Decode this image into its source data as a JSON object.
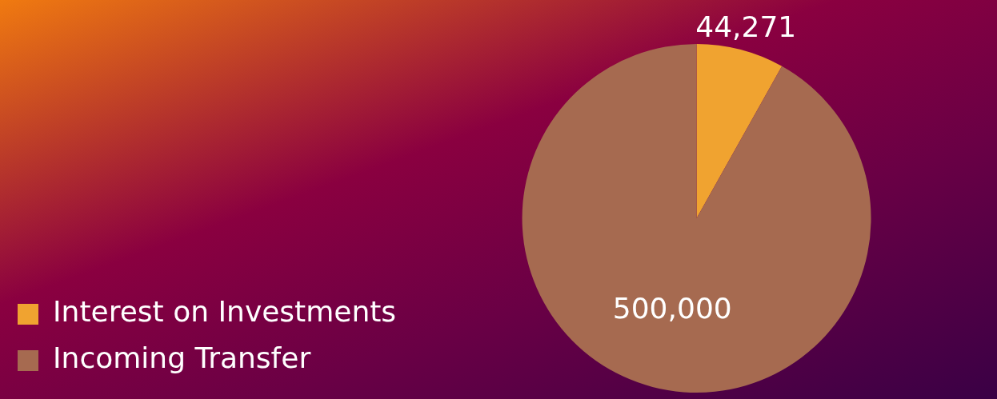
{
  "chart_data": {
    "type": "pie",
    "categories": [
      "Interest on Investments",
      "Incoming Transfer"
    ],
    "values": [
      44271,
      500000
    ],
    "colors": [
      "#f0a330",
      "#a66a50"
    ],
    "value_labels": [
      "44,271",
      "500,000"
    ],
    "legend": "bottom left"
  }
}
